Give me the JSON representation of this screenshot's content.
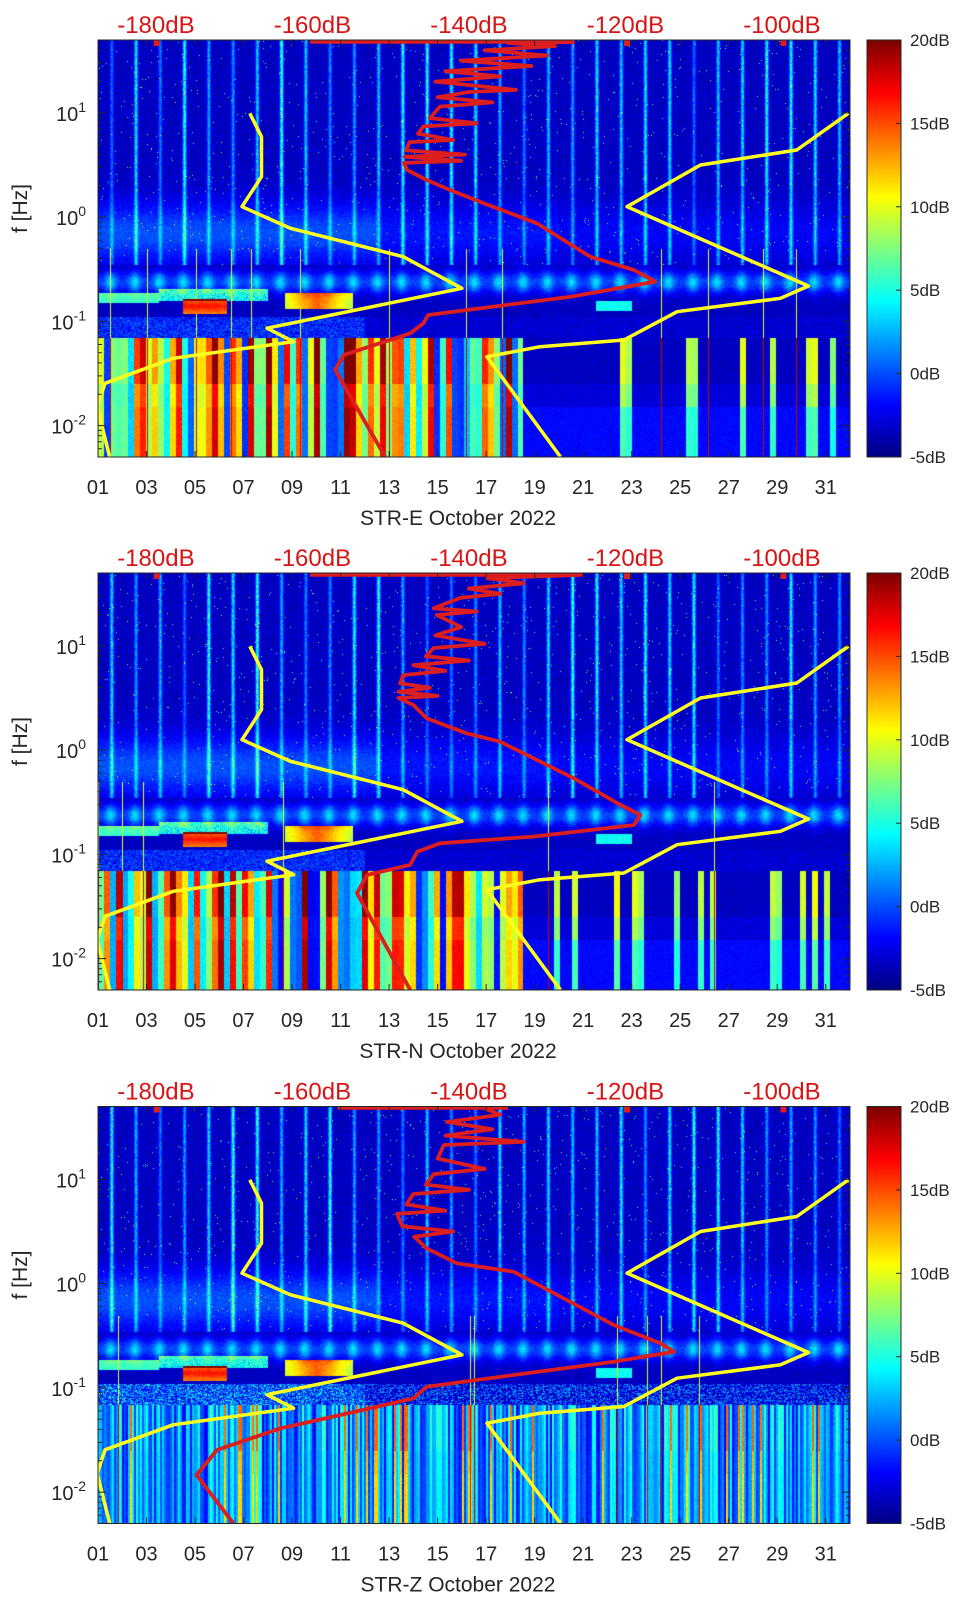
{
  "colors": {
    "nlnm": "#ffff1e",
    "nhnm": "#ffff1e",
    "psd": "#dc1e1e",
    "top_labels": "#d81414",
    "axis": "#262626"
  },
  "common": {
    "ylabel": "f [Hz]",
    "xlim_day": [
      1,
      32
    ],
    "ylim_hz": [
      0.005,
      50
    ],
    "x_ticks": [
      "01",
      "03",
      "05",
      "07",
      "09",
      "11",
      "13",
      "15",
      "17",
      "19",
      "21",
      "23",
      "25",
      "27",
      "29",
      "31"
    ],
    "y_ticks": [
      {
        "value": 0.01,
        "base": "10",
        "exp": "-2"
      },
      {
        "value": 0.1,
        "base": "10",
        "exp": "-1"
      },
      {
        "value": 1,
        "base": "10",
        "exp": "0"
      },
      {
        "value": 10,
        "base": "10",
        "exp": "1"
      }
    ],
    "top_axis": {
      "range_db": [
        -187.4,
        -91.3
      ],
      "values": [
        -180,
        -160,
        -140,
        -120,
        -100
      ],
      "labels": [
        "-180dB",
        "-160dB",
        "-140dB",
        "-120dB",
        "-100dB"
      ]
    },
    "colorbar": {
      "range_db": [
        -5,
        20
      ],
      "values": [
        20,
        15,
        10,
        5,
        0,
        -5
      ],
      "labels": [
        "20dB",
        "15dB",
        "10dB",
        "5dB",
        "0dB",
        "-5dB"
      ]
    },
    "nlnm": [
      [
        -185.9,
        -2.3
      ],
      [
        -187.5,
        -1.82
      ],
      [
        -186.5,
        -1.594
      ],
      [
        -177.8,
        -1.354
      ],
      [
        -162.4,
        -1.195
      ],
      [
        -165.8,
        -1.066
      ],
      [
        -140.9,
        -0.683
      ],
      [
        -148.4,
        -0.38
      ],
      [
        -162.8,
        -0.107
      ],
      [
        -169.0,
        0.1
      ],
      [
        -166.5,
        0.388
      ],
      [
        -166.5,
        0.771
      ],
      [
        -168.0,
        0.996
      ]
    ],
    "nhnm": [
      [
        -128.3,
        -2.3
      ],
      [
        -137.7,
        -1.339
      ],
      [
        -130.9,
        -1.243
      ],
      [
        -120.2,
        -1.179
      ],
      [
        -113.4,
        -0.907
      ],
      [
        -100.2,
        -0.779
      ],
      [
        -96.6,
        -0.661
      ],
      [
        -119.8,
        0.1
      ],
      [
        -110.4,
        0.5
      ],
      [
        -98.1,
        0.644
      ],
      [
        -91.5,
        0.996
      ]
    ],
    "top_markers_db": [
      -179.9,
      -119.8,
      -99.8
    ]
  },
  "chart_data": [
    {
      "type": "heatmap",
      "xlabel": "STR-E October 2022",
      "psd_points_db_log10f": [
        [
          -150.7,
          -2.3
        ],
        [
          -157.1,
          -1.466
        ],
        [
          -156.0,
          -1.323
        ],
        [
          -147.5,
          -1.114
        ],
        [
          -145.8,
          -1.018
        ],
        [
          -145.2,
          -0.939
        ],
        [
          -127.0,
          -0.763
        ],
        [
          -116.2,
          -0.619
        ],
        [
          -118.9,
          -0.507
        ],
        [
          -124.5,
          -0.38
        ],
        [
          -131.3,
          -0.059
        ],
        [
          -138.1,
          0.133
        ],
        [
          -142.4,
          0.26
        ],
        [
          -145.4,
          0.356
        ],
        [
          -147.9,
          0.452
        ],
        [
          -148.3,
          0.52
        ],
        [
          -141,
          0.54
        ],
        [
          -148.2,
          0.58
        ],
        [
          -140.5,
          0.6
        ],
        [
          -148,
          0.64
        ],
        [
          -147.6,
          0.72
        ],
        [
          -142,
          0.74
        ],
        [
          -146.5,
          0.8
        ],
        [
          -145.8,
          0.87
        ],
        [
          -139,
          0.9
        ],
        [
          -145,
          0.95
        ],
        [
          -143.7,
          1.06
        ],
        [
          -137,
          1.1
        ],
        [
          -144,
          1.15
        ],
        [
          -140,
          1.2
        ],
        [
          -134,
          1.22
        ],
        [
          -144.3,
          1.3
        ],
        [
          -136,
          1.35
        ],
        [
          -143,
          1.4
        ],
        [
          -132,
          1.45
        ],
        [
          -141,
          1.5
        ],
        [
          -130,
          1.55
        ],
        [
          -138,
          1.6
        ],
        [
          -129,
          1.64
        ],
        [
          -135,
          1.67
        ],
        [
          -126.5,
          1.68
        ]
      ],
      "psd_top_line": [
        [
          -160.3,
          1.68
        ],
        [
          -126.5,
          1.68
        ]
      ],
      "lowfreq_strength": 1.0
    },
    {
      "type": "heatmap",
      "xlabel": "STR-N October 2022",
      "psd_points_db_log10f": [
        [
          -147.5,
          -2.3
        ],
        [
          -154.3,
          -1.372
        ],
        [
          -153.0,
          -1.197
        ],
        [
          -147.5,
          -1.101
        ],
        [
          -146.6,
          -0.974
        ],
        [
          -143.7,
          -0.894
        ],
        [
          -131.8,
          -0.83
        ],
        [
          -118.9,
          -0.718
        ],
        [
          -118.1,
          -0.622
        ],
        [
          -120.6,
          -0.526
        ],
        [
          -126.6,
          -0.27
        ],
        [
          -136.0,
          0.081
        ],
        [
          -140.3,
          0.161
        ],
        [
          -145.4,
          0.305
        ],
        [
          -147.1,
          0.433
        ],
        [
          -149,
          0.5
        ],
        [
          -144,
          0.52
        ],
        [
          -149,
          0.56
        ],
        [
          -145,
          0.6
        ],
        [
          -148.8,
          0.64
        ],
        [
          -148.4,
          0.72
        ],
        [
          -143,
          0.76
        ],
        [
          -147.1,
          0.815
        ],
        [
          -140,
          0.86
        ],
        [
          -145.5,
          0.9
        ],
        [
          -144.5,
          0.98
        ],
        [
          -138,
          1.02
        ],
        [
          -144.3,
          1.1
        ],
        [
          -141,
          1.18
        ],
        [
          -144.1,
          1.296
        ],
        [
          -139,
          1.33
        ],
        [
          -144.5,
          1.36
        ],
        [
          -141.1,
          1.46
        ],
        [
          -136,
          1.5
        ],
        [
          -140,
          1.55
        ],
        [
          -133,
          1.6
        ],
        [
          -137.7,
          1.65
        ],
        [
          -126,
          1.68
        ]
      ],
      "psd_top_line": [
        [
          -160.3,
          1.68
        ],
        [
          -125.5,
          1.68
        ]
      ],
      "lowfreq_strength": 1.0
    },
    {
      "type": "heatmap",
      "xlabel": "STR-Z October 2022",
      "psd_points_db_log10f": [
        [
          -170.1,
          -2.3
        ],
        [
          -174.8,
          -1.836
        ],
        [
          -172.2,
          -1.596
        ],
        [
          -164.1,
          -1.389
        ],
        [
          -156.5,
          -1.261
        ],
        [
          -147.1,
          -1.101
        ],
        [
          -145.4,
          -0.989
        ],
        [
          -134.3,
          -0.877
        ],
        [
          -121.5,
          -0.749
        ],
        [
          -113.8,
          -0.653
        ],
        [
          -115.5,
          -0.573
        ],
        [
          -121.5,
          -0.397
        ],
        [
          -134.3,
          0.114
        ],
        [
          -141.5,
          0.194
        ],
        [
          -145.4,
          0.338
        ],
        [
          -147,
          0.45
        ],
        [
          -142,
          0.5
        ],
        [
          -148.5,
          0.55
        ],
        [
          -149.2,
          0.67
        ],
        [
          -143,
          0.7
        ],
        [
          -148,
          0.76
        ],
        [
          -147.1,
          0.86
        ],
        [
          -140,
          0.9
        ],
        [
          -145.5,
          0.95
        ],
        [
          -144.5,
          1.05
        ],
        [
          -138,
          1.1
        ],
        [
          -144,
          1.2
        ],
        [
          -143.2,
          1.33
        ],
        [
          -133,
          1.36
        ],
        [
          -143,
          1.42
        ],
        [
          -137,
          1.48
        ],
        [
          -142.8,
          1.55
        ],
        [
          -136,
          1.62
        ],
        [
          -138,
          1.68
        ]
      ],
      "psd_top_line": [
        [
          -156.8,
          1.685
        ],
        [
          -135,
          1.685
        ]
      ],
      "lowfreq_strength": 0.35
    }
  ]
}
